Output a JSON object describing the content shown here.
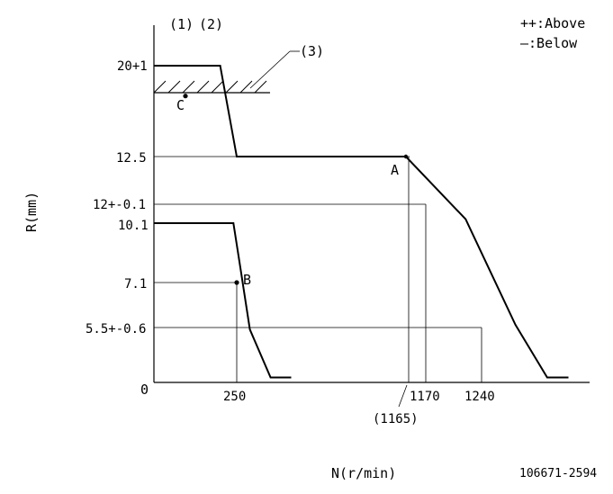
{
  "chart_data": {
    "type": "line",
    "title": "",
    "xlabel": "N(r/min)",
    "ylabel": "R(mm)",
    "header_marks": [
      "(1)",
      "(2)"
    ],
    "legend": [
      "++:Above",
      "—:Below"
    ],
    "drawing_number": "106671-2594",
    "x_ticks": [
      {
        "value": 250,
        "label": "250"
      },
      {
        "value": 1170,
        "label": "1170"
      },
      {
        "value": 1240,
        "label": "1240"
      }
    ],
    "x_sub_tick": {
      "value": 1165,
      "label": "(1165)"
    },
    "origin_label": "0",
    "y_ticks": [
      {
        "value": 20,
        "label": "20+1"
      },
      {
        "value": 12.5,
        "label": "12.5"
      },
      {
        "value": 12,
        "label": "12+-0.1"
      },
      {
        "value": 10.1,
        "label": "10.1"
      },
      {
        "value": 7.1,
        "label": "7.1"
      },
      {
        "value": 5.5,
        "label": "5.5+-0.6"
      }
    ],
    "series": [
      {
        "x": [
          0,
          200,
          250,
          1150,
          1220,
          1400,
          1550,
          1650
        ],
        "y": [
          20,
          20,
          12.5,
          12.5,
          10.5,
          5.6,
          0.5,
          0.5
        ]
      },
      {
        "x": [
          0,
          240,
          270,
          320,
          430,
          540
        ],
        "y": [
          10.1,
          10.1,
          7.8,
          5.3,
          0.5,
          0.5
        ]
      }
    ],
    "points": [
      {
        "label": "A",
        "x": 1150,
        "y": 12.5
      },
      {
        "label": "B",
        "x": 250,
        "y": 7.1
      },
      {
        "label": "C",
        "x": 95,
        "y": 17.5
      }
    ],
    "stop_zone": {
      "label": "(3)",
      "y": 17.5,
      "x_range": [
        0,
        350
      ]
    },
    "xlim": [
      0,
      1750
    ],
    "ylim": [
      0,
      22
    ]
  }
}
